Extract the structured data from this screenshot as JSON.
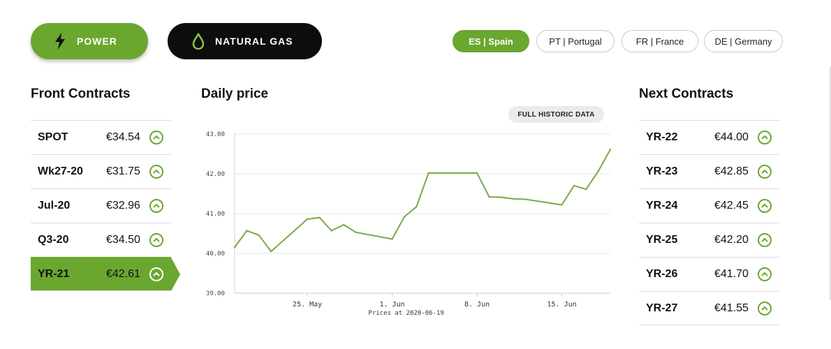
{
  "commodities": {
    "power": {
      "label": "POWER",
      "icon": "lightning-bolt-icon"
    },
    "gas": {
      "label": "NATURAL GAS",
      "icon": "flame-drop-icon"
    }
  },
  "countries": [
    {
      "label": "ES | Spain",
      "active": true
    },
    {
      "label": "PT | Portugal",
      "active": false
    },
    {
      "label": "FR | France",
      "active": false
    },
    {
      "label": "DE | Germany",
      "active": false
    }
  ],
  "front": {
    "title": "Front Contracts",
    "rows": [
      {
        "name": "SPOT",
        "price": "€34.54"
      },
      {
        "name": "Wk27-20",
        "price": "€31.75"
      },
      {
        "name": "Jul-20",
        "price": "€32.96"
      },
      {
        "name": "Q3-20",
        "price": "€34.50"
      },
      {
        "name": "YR-21",
        "price": "€42.61"
      }
    ]
  },
  "next": {
    "title": "Next Contracts",
    "rows": [
      {
        "name": "YR-22",
        "price": "€44.00"
      },
      {
        "name": "YR-23",
        "price": "€42.85"
      },
      {
        "name": "YR-24",
        "price": "€42.45"
      },
      {
        "name": "YR-25",
        "price": "€42.20"
      },
      {
        "name": "YR-26",
        "price": "€41.70"
      },
      {
        "name": "YR-27",
        "price": "€41.55"
      }
    ]
  },
  "daily": {
    "title": "Daily price",
    "historic_label": "FULL HISTORIC DATA"
  },
  "colors": {
    "accent": "#6aa72f",
    "dark": "#0d0d0d"
  },
  "chart_data": {
    "type": "line",
    "title": "Daily price",
    "caption": "Prices at 2020-06-19",
    "ylim": [
      39.0,
      43.0
    ],
    "yticks": [
      "39.00",
      "40.00",
      "41.00",
      "42.00",
      "43.00"
    ],
    "xtick_labels": [
      "25. May",
      "1. Jun",
      "8. Jun",
      "15. Jun"
    ],
    "grid": true,
    "series": [
      {
        "x": [
          "2020-05-19",
          "2020-05-20",
          "2020-05-21",
          "2020-05-22",
          "2020-05-25",
          "2020-05-26",
          "2020-05-27",
          "2020-05-28",
          "2020-05-29",
          "2020-06-01",
          "2020-06-02",
          "2020-06-03",
          "2020-06-04",
          "2020-06-05",
          "2020-06-08",
          "2020-06-09",
          "2020-06-10",
          "2020-06-11",
          "2020-06-12",
          "2020-06-15",
          "2020-06-16",
          "2020-06-17",
          "2020-06-18",
          "2020-06-19"
        ],
        "values": [
          40.15,
          40.57,
          40.46,
          40.05,
          40.86,
          40.9,
          40.57,
          40.72,
          40.53,
          40.36,
          40.92,
          41.17,
          42.02,
          42.02,
          42.02,
          41.42,
          41.41,
          41.37,
          41.36,
          41.22,
          41.7,
          41.61,
          42.06,
          42.61
        ]
      }
    ]
  }
}
